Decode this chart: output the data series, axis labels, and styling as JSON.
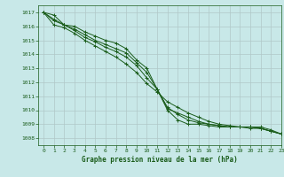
{
  "background_color": "#c8e8e8",
  "grid_color": "#b0c8c8",
  "line_color": "#1a5c1a",
  "title": "Graphe pression niveau de la mer (hPa)",
  "xlim": [
    -0.5,
    23
  ],
  "ylim": [
    1007.5,
    1017.5
  ],
  "yticks": [
    1008,
    1009,
    1010,
    1011,
    1012,
    1013,
    1014,
    1015,
    1016,
    1017
  ],
  "xticks": [
    0,
    1,
    2,
    3,
    4,
    5,
    6,
    7,
    8,
    9,
    10,
    11,
    12,
    13,
    14,
    15,
    16,
    17,
    18,
    19,
    20,
    21,
    22,
    23
  ],
  "series": [
    [
      1017.0,
      1016.8,
      1016.1,
      1016.0,
      1015.6,
      1015.3,
      1015.0,
      1014.8,
      1014.4,
      1013.6,
      1013.0,
      1011.5,
      1010.0,
      1009.3,
      1009.0,
      1009.0,
      1008.9,
      1008.8,
      1008.8,
      1008.8,
      1008.8,
      1008.7,
      1008.5,
      1008.3
    ],
    [
      1017.0,
      1016.5,
      1016.1,
      1015.8,
      1015.4,
      1015.0,
      1014.7,
      1014.4,
      1014.1,
      1013.4,
      1012.7,
      1011.5,
      1010.2,
      1009.7,
      1009.3,
      1009.1,
      1009.0,
      1008.9,
      1008.8,
      1008.8,
      1008.7,
      1008.7,
      1008.5,
      1008.3
    ],
    [
      1017.0,
      1016.4,
      1016.1,
      1015.7,
      1015.2,
      1014.9,
      1014.5,
      1014.2,
      1013.8,
      1013.2,
      1012.3,
      1011.5,
      1010.1,
      1009.8,
      1009.5,
      1009.2,
      1009.0,
      1008.9,
      1008.8,
      1008.8,
      1008.8,
      1008.7,
      1008.5,
      1008.3
    ],
    [
      1017.0,
      1016.1,
      1015.9,
      1015.5,
      1015.0,
      1014.6,
      1014.2,
      1013.8,
      1013.3,
      1012.7,
      1011.9,
      1011.3,
      1010.6,
      1010.2,
      1009.8,
      1009.5,
      1009.2,
      1009.0,
      1008.9,
      1008.8,
      1008.8,
      1008.8,
      1008.6,
      1008.3
    ]
  ]
}
